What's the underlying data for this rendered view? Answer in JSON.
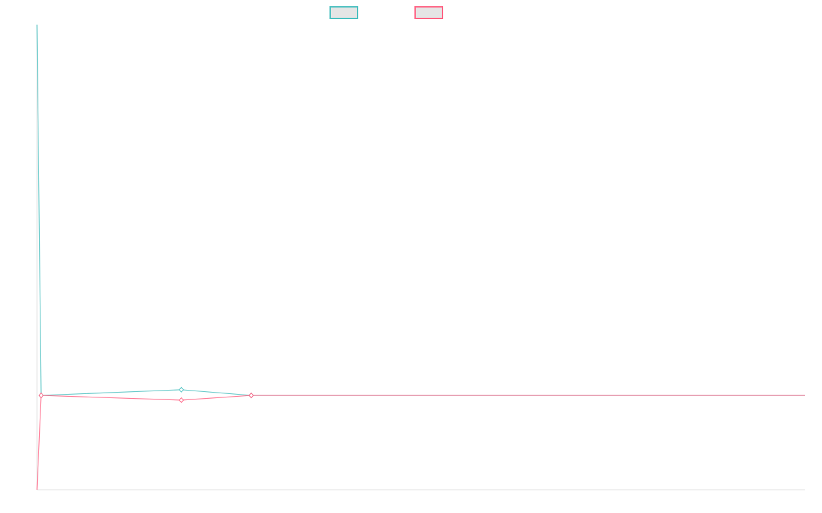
{
  "chart_data": {
    "type": "line",
    "title": "",
    "xlabel": "",
    "ylabel": "",
    "xlim": [
      0,
      1000
    ],
    "ylim": [
      -1,
      3.93
    ],
    "grid": false,
    "legend_position": "top",
    "series": [
      {
        "color": "#4bc0c0",
        "x": [
          0,
          5.4,
          188,
          279,
          1000
        ],
        "y": [
          3.93,
          0,
          0.06,
          0,
          0
        ]
      },
      {
        "color": "#ff6384",
        "x": [
          0,
          5.4,
          188,
          279,
          1000
        ],
        "y": [
          -1,
          0,
          -0.05,
          0,
          0
        ]
      }
    ],
    "legend": [
      {
        "color": "#4bc0c0"
      },
      {
        "color": "#ff6384"
      }
    ]
  }
}
